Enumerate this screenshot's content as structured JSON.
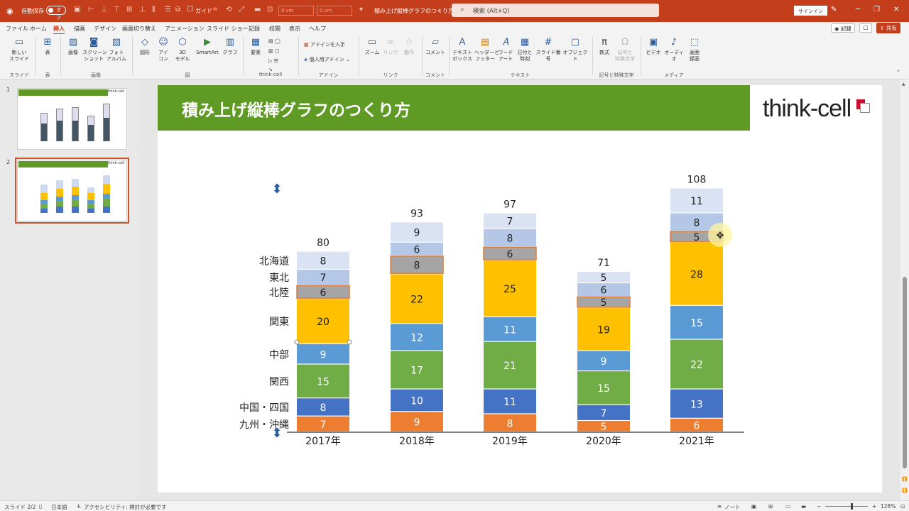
{
  "titlebar": {
    "autosave_label": "自動保存",
    "autosave_state": "オフ",
    "number_field_1": "0 cm",
    "number_field_2": "0 cm",
    "doc_title": "積み上げ縦棒グラフのつくり方",
    "guide_label": "ガイド",
    "search_placeholder": "検索 (Alt+Q)",
    "signin_label": "サインイン"
  },
  "menu_tabs": [
    "ファイル",
    "ホーム",
    "挿入",
    "描画",
    "デザイン",
    "画面切り替え",
    "アニメーション",
    "スライド ショー",
    "記録",
    "校閲",
    "表示",
    "ヘルプ"
  ],
  "active_tab": "挿入",
  "header_actions": {
    "record": "記録",
    "share": "共有"
  },
  "ribbon": {
    "new_slide": "新しい\nスライド",
    "table": "表",
    "image": "画像",
    "screenshot": "スクリーン\nショット",
    "photo_album": "フォト\nアルバム",
    "shape": "図形",
    "icon": "アイ\nコン",
    "model3d": "3D\nモデル",
    "smartart": "SmartArt",
    "graph": "グラフ",
    "element": "要素",
    "get_addin": "アドインを入手",
    "personal_addin": "個人用アドイン",
    "zoom": "ズーム",
    "link": "リンク",
    "action": "動作",
    "comment": "コメント",
    "textbox": "テキスト\nボックス",
    "header_footer": "ヘッダーと\nフッター",
    "wordart": "ワード\nアート",
    "datetime": "日付と\n時刻",
    "slide_number": "スライド番号",
    "object": "オブジェクト",
    "equation": "数式",
    "symbol": "記号と\n特殊文字",
    "video": "ビデオ",
    "audio": "オーディオ",
    "screen_record": "画面\n録画",
    "groups": [
      "スライド",
      "表",
      "画像",
      "図",
      "think-cell",
      "アドイン",
      "リンク",
      "コメント",
      "テキスト",
      "記号と特殊文字",
      "メディア"
    ]
  },
  "thumbnails": {
    "numbers": [
      "1",
      "2"
    ],
    "title": "積み上げ縦棒グラフのつくり方",
    "logo": "think-cell"
  },
  "slide": {
    "title": "積み上げ縦棒グラフのつくり方",
    "logo_text": "think-cell"
  },
  "chart_data": {
    "type": "bar",
    "stacked": true,
    "categories": [
      "2017年",
      "2018年",
      "2019年",
      "2020年",
      "2021年"
    ],
    "totals": [
      80,
      93,
      97,
      71,
      108
    ],
    "series": [
      {
        "name": "九州・沖縄",
        "values": [
          7,
          9,
          8,
          5,
          6
        ],
        "color": "#ed7d31"
      },
      {
        "name": "中国・四国",
        "values": [
          8,
          10,
          11,
          7,
          13
        ],
        "color": "#4472c4"
      },
      {
        "name": "関西",
        "values": [
          15,
          17,
          21,
          15,
          22
        ],
        "color": "#70ad47"
      },
      {
        "name": "中部",
        "values": [
          9,
          12,
          11,
          9,
          15
        ],
        "color": "#5b9bd5"
      },
      {
        "name": "関東",
        "values": [
          20,
          22,
          25,
          19,
          28
        ],
        "color": "#ffc000"
      },
      {
        "name": "北陸",
        "values": [
          6,
          8,
          6,
          5,
          5
        ],
        "color": "#a5a5a5"
      },
      {
        "name": "東北",
        "values": [
          7,
          6,
          8,
          6,
          8
        ],
        "color": "#b4c7e7"
      },
      {
        "name": "北海道",
        "values": [
          8,
          9,
          7,
          5,
          11
        ],
        "color": "#dae3f3"
      }
    ],
    "ylim": [
      0,
      108
    ],
    "legend": "left-of-first-bar",
    "grid": false
  },
  "statusbar": {
    "slide_info": "スライド 2/2",
    "language": "日本語",
    "accessibility": "アクセシビリティ: 検討が必要です",
    "notes": "ノート",
    "zoom": "128%"
  }
}
